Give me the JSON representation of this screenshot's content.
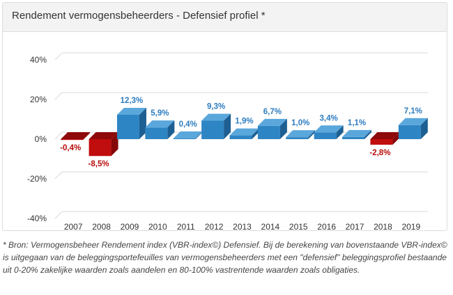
{
  "chart_data": {
    "type": "bar",
    "title": "Rendement vermogensbeheerders - Defensief profiel *",
    "xlabel": "",
    "ylabel": "",
    "ylim": [
      -40,
      40
    ],
    "yticks": [
      40,
      20,
      0,
      -20,
      -40
    ],
    "ytick_labels": [
      "40%",
      "20%",
      "0%",
      "-20%",
      "-40%"
    ],
    "categories": [
      "2007",
      "2008",
      "2009",
      "2010",
      "2011",
      "2012",
      "2013",
      "2014",
      "2015",
      "2016",
      "2017",
      "2018",
      "2019"
    ],
    "values": [
      -0.4,
      -8.5,
      12.3,
      5.9,
      0.4,
      9.3,
      1.9,
      6.7,
      1.0,
      3.4,
      1.1,
      -2.8,
      7.1
    ],
    "value_labels": [
      "-0,4%",
      "-8,5%",
      "12,3%",
      "5,9%",
      "0,4%",
      "9,3%",
      "1,9%",
      "6,7%",
      "1,0%",
      "3,4%",
      "1,1%",
      "-2,8%",
      "7,1%"
    ],
    "colors": {
      "positive": "#2e85c4",
      "positive_top": "#5aa7dc",
      "positive_side": "#1d5f92",
      "positive_label": "#2d7cc0",
      "negative": "#c00d0d",
      "negative_top": "#8e0909",
      "negative_side": "#850707",
      "negative_label": "#b80c0c",
      "grid": "#d8d8d8"
    },
    "grid": true,
    "legend": "none"
  },
  "footnote": "* Bron: Vermogensbeheer Rendement index (VBR-index©) Defensief. Bij de berekening van bovenstaande VBR-index© is uitgegaan van de beleggingsportefeuilles van vermogensbeheerders met een \"defensief\" beleggingsprofiel bestaande uit 0-20% zakelijke waarden zoals aandelen en 80-100% vastrentende waarden zoals obligaties."
}
